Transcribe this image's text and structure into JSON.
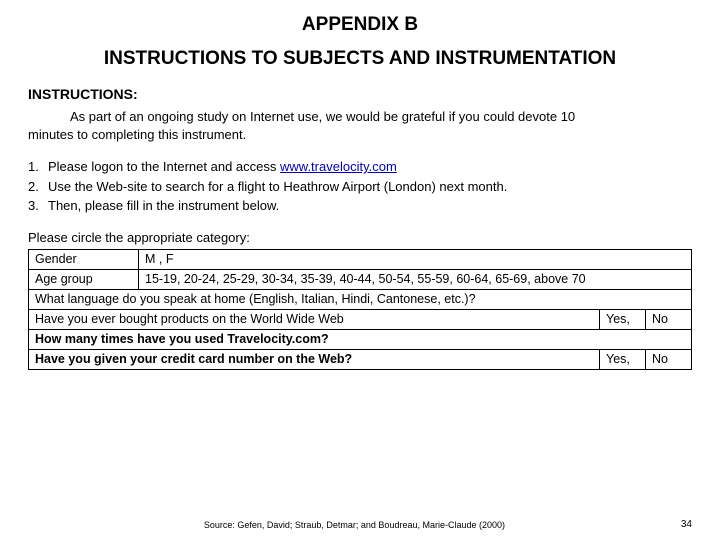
{
  "appendix": "APPENDIX B",
  "heading": "INSTRUCTIONS TO SUBJECTS AND INSTRUMENTATION",
  "instructions_label": "INSTRUCTIONS:",
  "intro_a": "As part of an ongoing study on Internet use, we would be grateful if you could devote 10",
  "intro_b": "minutes to completing this instrument.",
  "steps": {
    "s1a": "Please logon to the Internet and access ",
    "s1link": "www.travelocity.com",
    "s2": "Use the Web-site to search for a flight to Heathrow Airport (London) next month.",
    "s3": "Then, please fill in the instrument below."
  },
  "circle": "Please circle the appropriate category:",
  "table": {
    "gender_label": "Gender",
    "gender_opts": "M   ,   F",
    "age_label": "Age group",
    "age_opts": "15-19, 20-24, 25-29, 30-34, 35-39, 40-44, 50-54, 55-59, 60-64, 65-69, above 70",
    "lang": "What language do you speak at home (English, Italian, Hindi, Cantonese, etc.)?",
    "bought": "Have you ever bought products on the World Wide Web",
    "times": "How many times have you used Travelocity.com?",
    "cc": "Have you given your credit card number on the Web?",
    "yes": "Yes,",
    "no": "No"
  },
  "source": "Source: Gefen, David; Straub, Detmar; and Boudreau, Marie-Claude (2000)",
  "page": "34"
}
